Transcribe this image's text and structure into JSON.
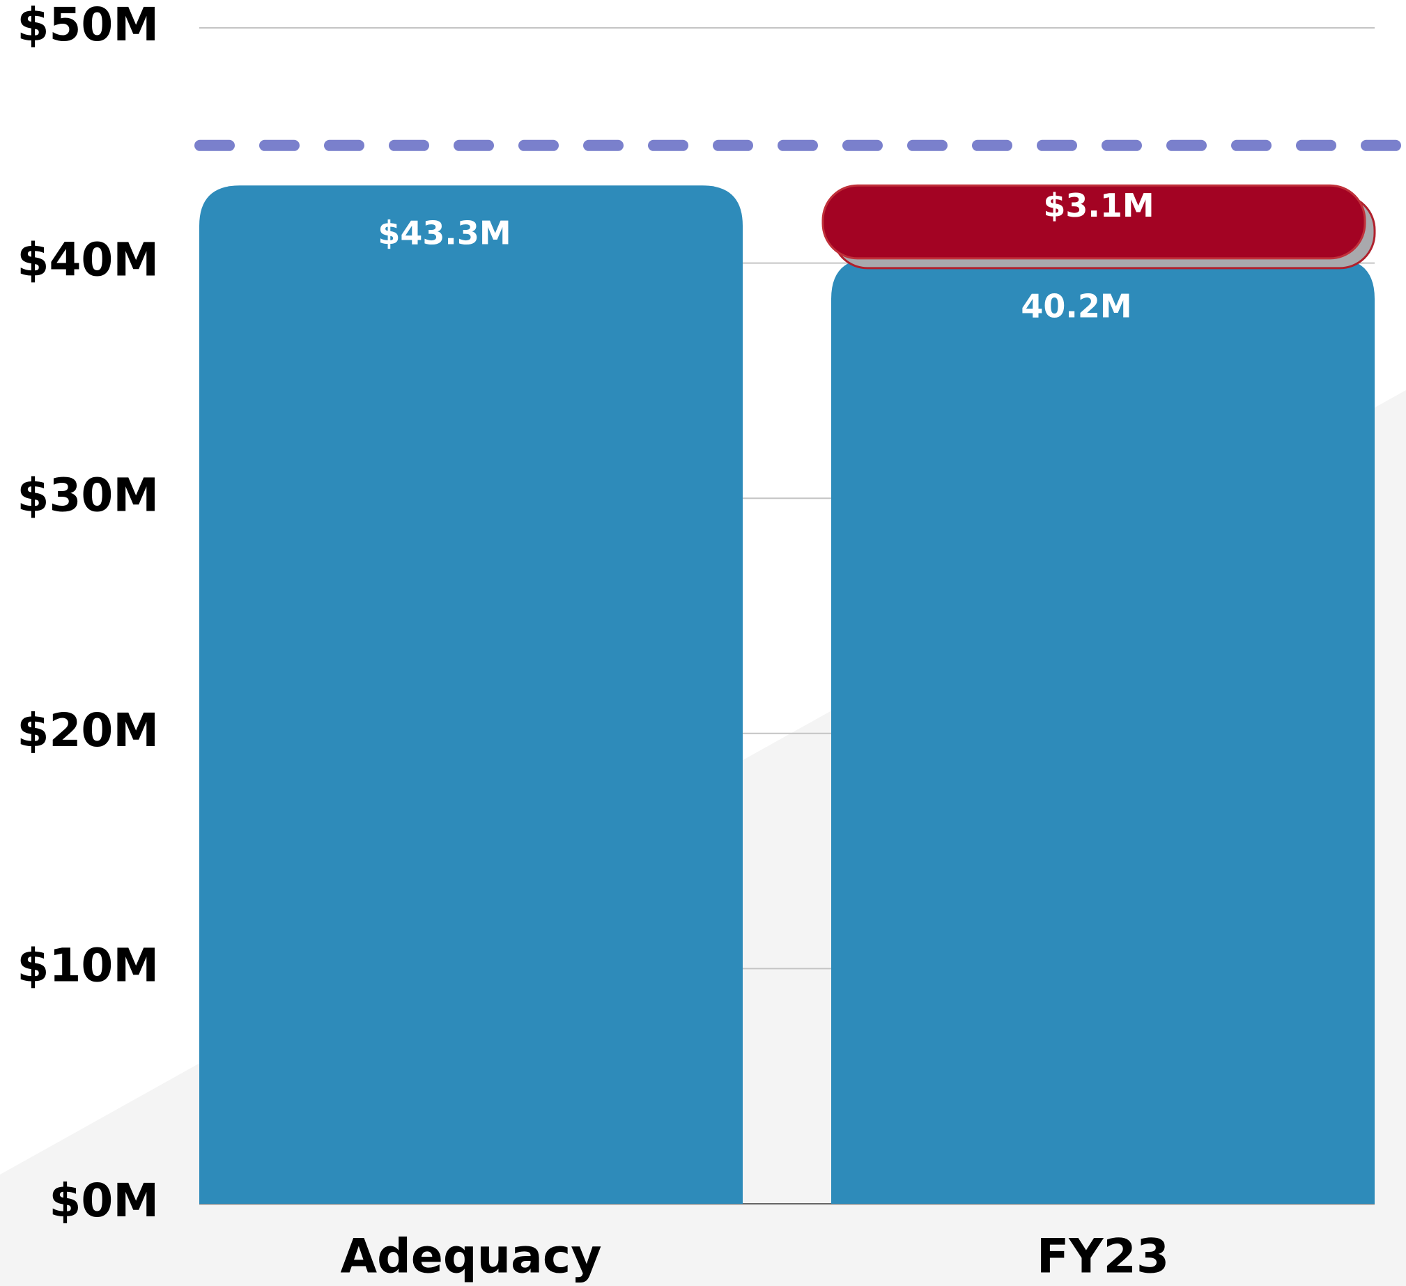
{
  "chart_data": {
    "type": "bar",
    "stacked": true,
    "categories": [
      "Adequacy",
      "FY23"
    ],
    "series": [
      {
        "color": "#2e8bba",
        "values": [
          43.3,
          40.2
        ],
        "value_labels": [
          "$43.3M",
          "40.2M"
        ]
      },
      {
        "color": "#a30323",
        "values": [
          null,
          3.1
        ],
        "value_labels": [
          null,
          "$3.1M"
        ]
      }
    ],
    "reference_value": 45,
    "reference_color": "#7a80cc",
    "ylim": [
      0,
      50
    ],
    "yticks": [
      {
        "value": 0,
        "label": "$0M"
      },
      {
        "value": 10,
        "label": "$10M"
      },
      {
        "value": 20,
        "label": "$20M"
      },
      {
        "value": 30,
        "label": "$30M"
      },
      {
        "value": 40,
        "label": "$40M"
      },
      {
        "value": 50,
        "label": "$50M"
      }
    ],
    "grid": true
  }
}
